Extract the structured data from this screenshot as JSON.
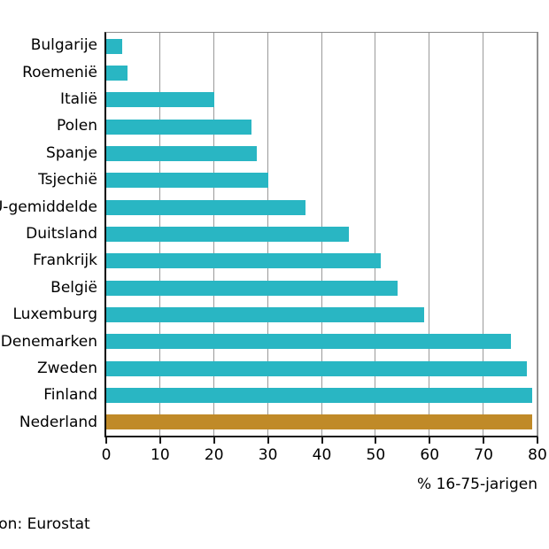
{
  "chart_data": {
    "type": "bar",
    "orientation": "horizontal",
    "title": "",
    "categories": [
      "Bulgarije",
      "Roemenië",
      "Italië",
      "Polen",
      "Spanje",
      "Tsjechië",
      "EU-gemiddelde",
      "Duitsland",
      "Frankrijk",
      "België",
      "Luxemburg",
      "Denemarken",
      "Zweden",
      "Finland",
      "Nederland"
    ],
    "values": [
      3,
      4,
      20,
      27,
      28,
      30,
      37,
      45,
      51,
      54,
      59,
      75,
      78,
      79,
      79
    ],
    "xlabel": "% 16-75-jarigen",
    "ylabel": "",
    "xlim": [
      0,
      80
    ],
    "xticks": [
      0,
      10,
      20,
      30,
      40,
      50,
      60,
      70,
      80
    ],
    "grid": "vertical",
    "legend": "none",
    "highlight_category": "Nederland",
    "colors": {
      "bar": "#29B6C3",
      "highlight": "#C08A28",
      "grid": "#9a9a9a",
      "frame": "#8a8a8a",
      "axis": "#000000",
      "text": "#000000"
    }
  },
  "source": {
    "label": "Bron: Eurostat"
  }
}
